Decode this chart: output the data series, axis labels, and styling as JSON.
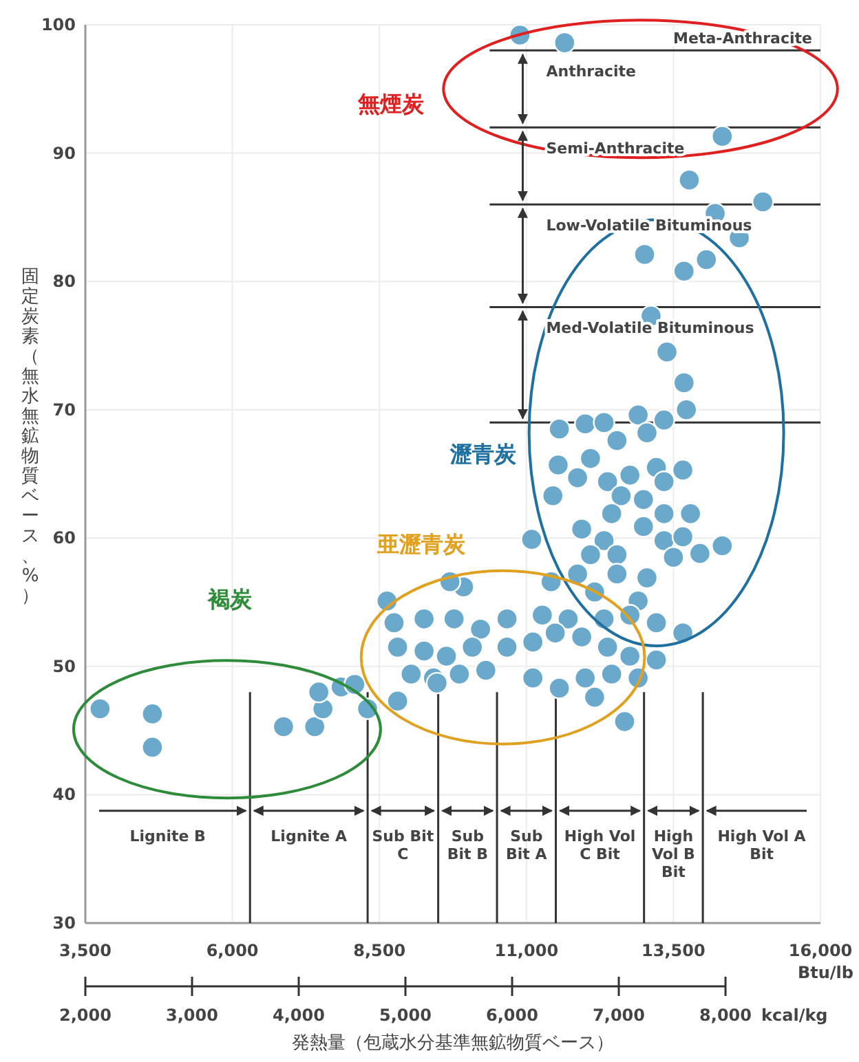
{
  "chart_data": {
    "type": "scatter",
    "xlabel": "発熱量（包蔵水分基準無鉱物質ベース）",
    "ylabel": "固定炭素（無水無鉱物質ベース、%）",
    "x2label": "kcal/kg",
    "xlim": [
      3500,
      16000
    ],
    "ylim": [
      30,
      100
    ],
    "xticks": [
      {
        "value": 3500,
        "label": "3,500"
      },
      {
        "value": 6000,
        "label": "6,000"
      },
      {
        "value": 8500,
        "label": "8,500"
      },
      {
        "value": 11000,
        "label": "11,000"
      },
      {
        "value": 13500,
        "label": "13,500"
      },
      {
        "value": 16000,
        "label": "16,000"
      }
    ],
    "yticks": [
      30,
      40,
      50,
      60,
      70,
      80,
      90,
      100
    ],
    "x2lim": [
      2000,
      8890
    ],
    "x2ticks": [
      {
        "value": 2000,
        "label": "2,000"
      },
      {
        "value": 3000,
        "label": "3,000"
      },
      {
        "value": 4000,
        "label": "4,000"
      },
      {
        "value": 5000,
        "label": "5,000"
      },
      {
        "value": 6000,
        "label": "6,000"
      },
      {
        "value": 7000,
        "label": "7,000"
      },
      {
        "value": 8000,
        "label": "8,000"
      }
    ],
    "grid": true,
    "marker": "circle",
    "color": "#6aa9cb",
    "x": [
      3750,
      4640,
      4640,
      6870,
      7400,
      7540,
      7850,
      8080,
      7470,
      8300,
      10890,
      11650,
      14330,
      13770,
      15020,
      14210,
      14620,
      13010,
      14060,
      13680,
      13120,
      13390,
      13680,
      11560,
      12000,
      12320,
      12540,
      12900,
      13340,
      13720,
      13050,
      11540,
      11870,
      12090,
      12380,
      12760,
      13210,
      13340,
      13660,
      12610,
      12990,
      13340,
      13790,
      11450,
      12450,
      12990,
      11940,
      11090,
      12320,
      12090,
      12540,
      13340,
      13660,
      13950,
      14330,
      13500,
      13050,
      12540,
      11870,
      11420,
      12160,
      12900,
      9930,
      9700,
      8630,
      11270,
      11710,
      12320,
      12760,
      13210,
      13660,
      8750,
      9260,
      9770,
      10220,
      10670,
      11110,
      8810,
      9260,
      9640,
      10080,
      10670,
      11490,
      11940,
      12380,
      12760,
      13210,
      9040,
      9420,
      9860,
      10310,
      11110,
      11560,
      12000,
      12450,
      12900,
      8810,
      9480,
      12160,
      12670
    ],
    "values": [
      46.7,
      46.3,
      43.7,
      45.3,
      45.3,
      46.7,
      48.4,
      48.6,
      48.0,
      46.7,
      99.2,
      98.6,
      91.3,
      87.9,
      86.2,
      85.3,
      83.4,
      82.1,
      81.7,
      80.8,
      77.3,
      74.5,
      72.1,
      68.5,
      68.9,
      69.0,
      67.6,
      69.6,
      69.2,
      70.0,
      68.2,
      65.7,
      64.7,
      66.2,
      64.4,
      64.9,
      65.5,
      64.4,
      65.3,
      63.3,
      63.0,
      61.9,
      61.9,
      63.3,
      61.9,
      60.9,
      60.7,
      59.9,
      59.8,
      58.7,
      58.7,
      59.8,
      60.1,
      58.8,
      59.4,
      58.5,
      56.9,
      57.2,
      57.2,
      56.6,
      55.8,
      55.1,
      56.2,
      56.6,
      55.1,
      54.0,
      53.7,
      53.7,
      54.0,
      53.4,
      52.6,
      53.4,
      53.7,
      53.7,
      52.9,
      53.7,
      51.9,
      51.5,
      51.2,
      50.8,
      51.5,
      51.5,
      52.6,
      52.3,
      51.5,
      50.8,
      50.5,
      49.4,
      49.1,
      49.4,
      49.7,
      49.1,
      48.3,
      49.1,
      49.4,
      49.1,
      47.3,
      48.7,
      47.6,
      45.7
    ],
    "ref_lines": [
      {
        "axis": "y",
        "value": 98,
        "color": "#333333"
      },
      {
        "axis": "y",
        "value": 92,
        "color": "#333333"
      },
      {
        "axis": "y",
        "value": 86,
        "color": "#333333"
      },
      {
        "axis": "y",
        "value": 78,
        "color": "#333333"
      },
      {
        "axis": "y",
        "value": 69,
        "color": "#333333"
      },
      {
        "axis": "x",
        "value": 6300,
        "color": "#333333"
      },
      {
        "axis": "x",
        "value": 8300,
        "color": "#333333"
      },
      {
        "axis": "x",
        "value": 9500,
        "color": "#333333"
      },
      {
        "axis": "x",
        "value": 10500,
        "color": "#333333"
      },
      {
        "axis": "x",
        "value": 11500,
        "color": "#333333"
      },
      {
        "axis": "x",
        "value": 13000,
        "color": "#333333"
      },
      {
        "axis": "x",
        "value": 14000,
        "color": "#333333"
      }
    ],
    "annotations": [
      "無煙炭",
      "瀝青炭",
      "亜瀝青炭",
      "褐炭",
      "Meta-Anthracite",
      "Anthracite",
      "Semi-Anthracite",
      "Low-Volatile Bituminous",
      "Med-Volatile Bituminous",
      "Lignite B",
      "Lignite A",
      "Sub Bit C",
      "Sub Bit B",
      "Sub Bit A",
      "High Vol C Bit",
      "High Vol B Bit",
      "High Vol A Bit",
      "Btu/lb"
    ]
  }
}
